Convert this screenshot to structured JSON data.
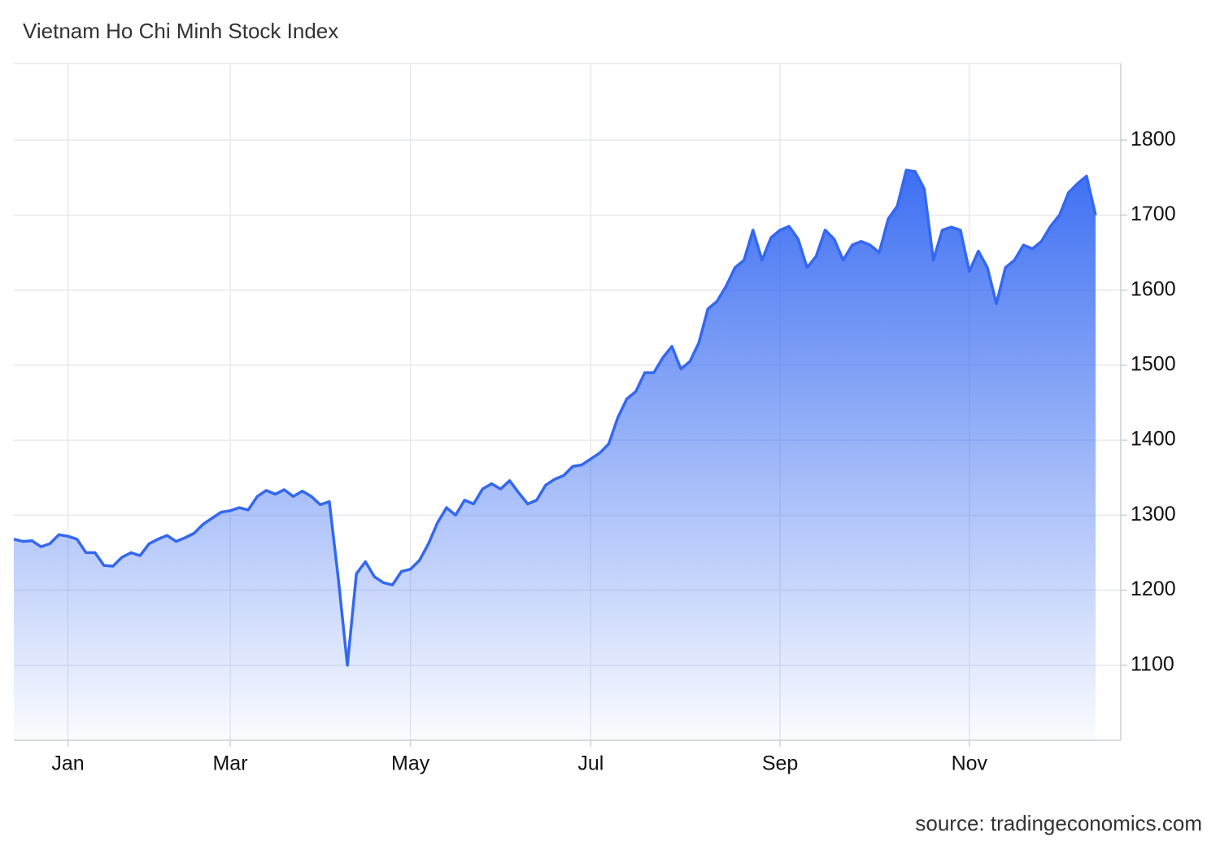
{
  "chart_data": {
    "type": "area",
    "title": "Vietnam Ho Chi Minh Stock Index",
    "source": "source: tradingeconomics.com",
    "categories": [
      null,
      null,
      null,
      null,
      null,
      null,
      "Jan",
      null,
      null,
      null,
      null,
      null,
      null,
      null,
      null,
      null,
      null,
      null,
      null,
      null,
      null,
      null,
      null,
      null,
      "Mar",
      null,
      null,
      null,
      null,
      null,
      null,
      null,
      null,
      null,
      null,
      null,
      null,
      null,
      null,
      null,
      null,
      null,
      null,
      null,
      "May",
      null,
      null,
      null,
      null,
      null,
      null,
      null,
      null,
      null,
      null,
      null,
      null,
      null,
      null,
      null,
      null,
      null,
      null,
      null,
      "Jul",
      null,
      null,
      null,
      null,
      null,
      null,
      null,
      null,
      null,
      null,
      null,
      null,
      null,
      null,
      null,
      null,
      null,
      null,
      null,
      null,
      "Sep",
      null,
      null,
      null,
      null,
      null,
      null,
      null,
      null,
      null,
      null,
      null,
      null,
      null,
      null,
      null,
      null,
      null,
      null,
      null,
      null,
      "Nov",
      null,
      null,
      null,
      null,
      null,
      null,
      null,
      null,
      null,
      null,
      null,
      null,
      null,
      null
    ],
    "values": [
      1268,
      1265,
      1266,
      1258,
      1262,
      1274,
      1272,
      1268,
      1250,
      1250,
      1233,
      1232,
      1244,
      1250,
      1246,
      1262,
      1268,
      1273,
      1265,
      1270,
      1276,
      1288,
      1296,
      1304,
      1306,
      1310,
      1307,
      1325,
      1333,
      1328,
      1334,
      1325,
      1332,
      1325,
      1314,
      1318,
      1215,
      1100,
      1222,
      1238,
      1218,
      1210,
      1207,
      1225,
      1228,
      1240,
      1262,
      1290,
      1310,
      1300,
      1320,
      1315,
      1335,
      1342,
      1335,
      1346,
      1330,
      1315,
      1320,
      1340,
      1348,
      1353,
      1365,
      1367,
      1375,
      1383,
      1395,
      1430,
      1455,
      1465,
      1490,
      1490,
      1510,
      1525,
      1495,
      1505,
      1530,
      1575,
      1585,
      1605,
      1630,
      1640,
      1680,
      1640,
      1670,
      1680,
      1685,
      1668,
      1630,
      1645,
      1680,
      1668,
      1640,
      1660,
      1665,
      1660,
      1650,
      1695,
      1712,
      1760,
      1758,
      1735,
      1640,
      1680,
      1684,
      1680,
      1625,
      1652,
      1630,
      1582,
      1630,
      1640,
      1660,
      1655,
      1665,
      1685,
      1700,
      1730,
      1742,
      1752,
      1700
    ],
    "color": "#3468f2",
    "ylim": [
      1000,
      1900
    ],
    "yticks": [
      1100,
      1200,
      1300,
      1400,
      1500,
      1600,
      1700,
      1800
    ],
    "grid": true
  }
}
